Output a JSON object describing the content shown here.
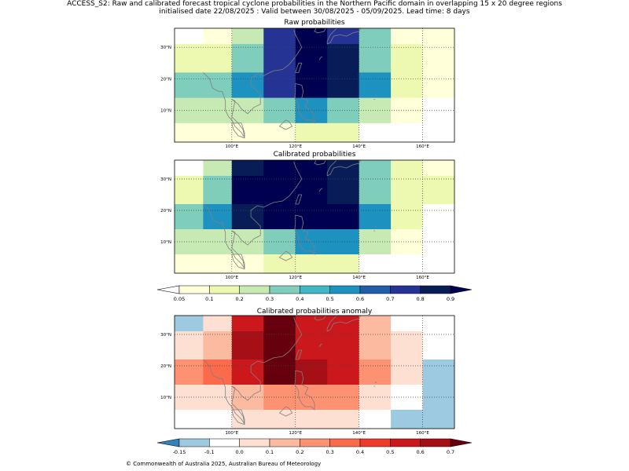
{
  "title_line1": "ACCESS_S2: Raw and calibrated forecast tropical cyclone probabilities in the Northern Pacific domain in overlapping 15 x 20 degree regions",
  "title_line2": "initialised date 22/08/2025 :  Valid between 30/08/2025 - 05/09/2025. Lead time: 8 days",
  "footer": "© Commonwealth of Australia 2025, Australian Bureau of Meteorology",
  "chart_data": [
    {
      "type": "heatmap",
      "title": "Raw probabilities",
      "x_ticks": [
        "100°E",
        "120°E",
        "140°E",
        "160°E"
      ],
      "x_tick_values": [
        100,
        120,
        140,
        160
      ],
      "y_ticks": [
        "10°N",
        "20°N",
        "30°N"
      ],
      "y_tick_values": [
        10,
        20,
        30
      ],
      "xlim": [
        82,
        170
      ],
      "ylim": [
        0,
        36
      ],
      "cell_x_edges": [
        82,
        91,
        100,
        110,
        120,
        130,
        140,
        150,
        160,
        170
      ],
      "cell_y_edges_top_to_bottom": [
        36,
        31,
        22,
        14,
        6,
        0
      ],
      "values_top_to_bottom": [
        [
          null,
          0.05,
          0.2,
          0.7,
          0.9,
          0.75,
          0.35,
          0.05,
          0.05
        ],
        [
          0.1,
          0.1,
          0.35,
          0.7,
          0.9,
          0.8,
          0.35,
          0.1,
          0.05
        ],
        [
          0.35,
          0.35,
          0.5,
          0.7,
          0.9,
          0.8,
          0.5,
          0.1,
          0.05
        ],
        [
          0.2,
          0.2,
          0.2,
          0.35,
          0.5,
          0.35,
          0.25,
          0.05,
          null
        ],
        [
          0.05,
          0.05,
          0.05,
          0.05,
          0.1,
          0.1,
          null,
          null,
          null
        ]
      ]
    },
    {
      "type": "heatmap",
      "title": "Calibrated probabilities",
      "x_ticks": [
        "100°E",
        "120°E",
        "140°E",
        "160°E"
      ],
      "x_tick_values": [
        100,
        120,
        140,
        160
      ],
      "y_ticks": [
        "10°N",
        "20°N",
        "30°N"
      ],
      "y_tick_values": [
        10,
        20,
        30
      ],
      "xlim": [
        82,
        170
      ],
      "ylim": [
        0,
        36
      ],
      "cell_x_edges": [
        82,
        91,
        100,
        110,
        120,
        130,
        140,
        150,
        160,
        170
      ],
      "cell_y_edges_top_to_bottom": [
        36,
        31,
        22,
        14,
        6,
        0
      ],
      "values_top_to_bottom": [
        [
          null,
          0.2,
          0.8,
          0.95,
          0.95,
          0.8,
          0.35,
          0.1,
          0.05
        ],
        [
          0.1,
          0.35,
          0.9,
          0.95,
          0.95,
          0.8,
          0.35,
          0.1,
          0.1
        ],
        [
          0.35,
          0.55,
          0.8,
          0.95,
          0.9,
          0.9,
          0.5,
          0.1,
          null
        ],
        [
          0.2,
          0.2,
          0.2,
          0.35,
          0.5,
          0.5,
          0.25,
          0.05,
          null
        ],
        [
          0.05,
          0.05,
          0.05,
          0.1,
          0.1,
          0.1,
          null,
          null,
          null
        ]
      ]
    },
    {
      "type": "heatmap",
      "title": "Calibrated probabilities anomaly",
      "x_ticks": [
        "100°E",
        "120°E",
        "140°E",
        "160°E"
      ],
      "x_tick_values": [
        100,
        120,
        140,
        160
      ],
      "y_ticks": [
        "10°N",
        "20°N",
        "30°N"
      ],
      "y_tick_values": [
        10,
        20,
        30
      ],
      "xlim": [
        82,
        170
      ],
      "ylim": [
        0,
        36
      ],
      "cell_x_edges": [
        82,
        91,
        100,
        110,
        120,
        130,
        140,
        150,
        160,
        170
      ],
      "cell_y_edges_top_to_bottom": [
        36,
        31,
        22,
        14,
        6,
        0
      ],
      "values_top_to_bottom": [
        [
          -0.15,
          0.05,
          0.55,
          0.75,
          0.55,
          0.55,
          0.15,
          -0.05,
          -0.05
        ],
        [
          0.0,
          0.15,
          0.65,
          0.75,
          0.55,
          0.55,
          0.15,
          0.0,
          -0.05
        ],
        [
          0.25,
          0.35,
          0.55,
          0.75,
          0.65,
          0.55,
          0.25,
          0.0,
          -0.15
        ],
        [
          0.05,
          0.05,
          0.15,
          0.25,
          0.25,
          0.25,
          0.05,
          -0.05,
          -0.15
        ],
        [
          -0.05,
          -0.05,
          0.0,
          0.0,
          0.0,
          0.0,
          -0.05,
          -0.15,
          -0.15
        ]
      ]
    }
  ],
  "colorbars": [
    {
      "ticks": [
        "0.05",
        "0.1",
        "0.2",
        "0.3",
        "0.4",
        "0.5",
        "0.6",
        "0.7",
        "0.8",
        "0.9"
      ],
      "colors": [
        "#ffffd9",
        "#edf8b1",
        "#c7e9b4",
        "#7fcdbb",
        "#41b6c4",
        "#1d91c0",
        "#225ea8",
        "#253494",
        "#081d58"
      ],
      "under_color": "#ffffff",
      "over_color": "#000050"
    },
    {
      "ticks": [
        "-0.15",
        "-0.1",
        "0.0",
        "0.1",
        "0.2",
        "0.3",
        "0.4",
        "0.5",
        "0.6",
        "0.7"
      ],
      "colors": [
        "#9ecae1",
        "#ffffff",
        "#fee0d2",
        "#fcbba1",
        "#fc9272",
        "#fb6a4a",
        "#ef3b2c",
        "#cb181d",
        "#a50f15"
      ],
      "under_color": "#3182bd",
      "over_color": "#67000d"
    }
  ]
}
